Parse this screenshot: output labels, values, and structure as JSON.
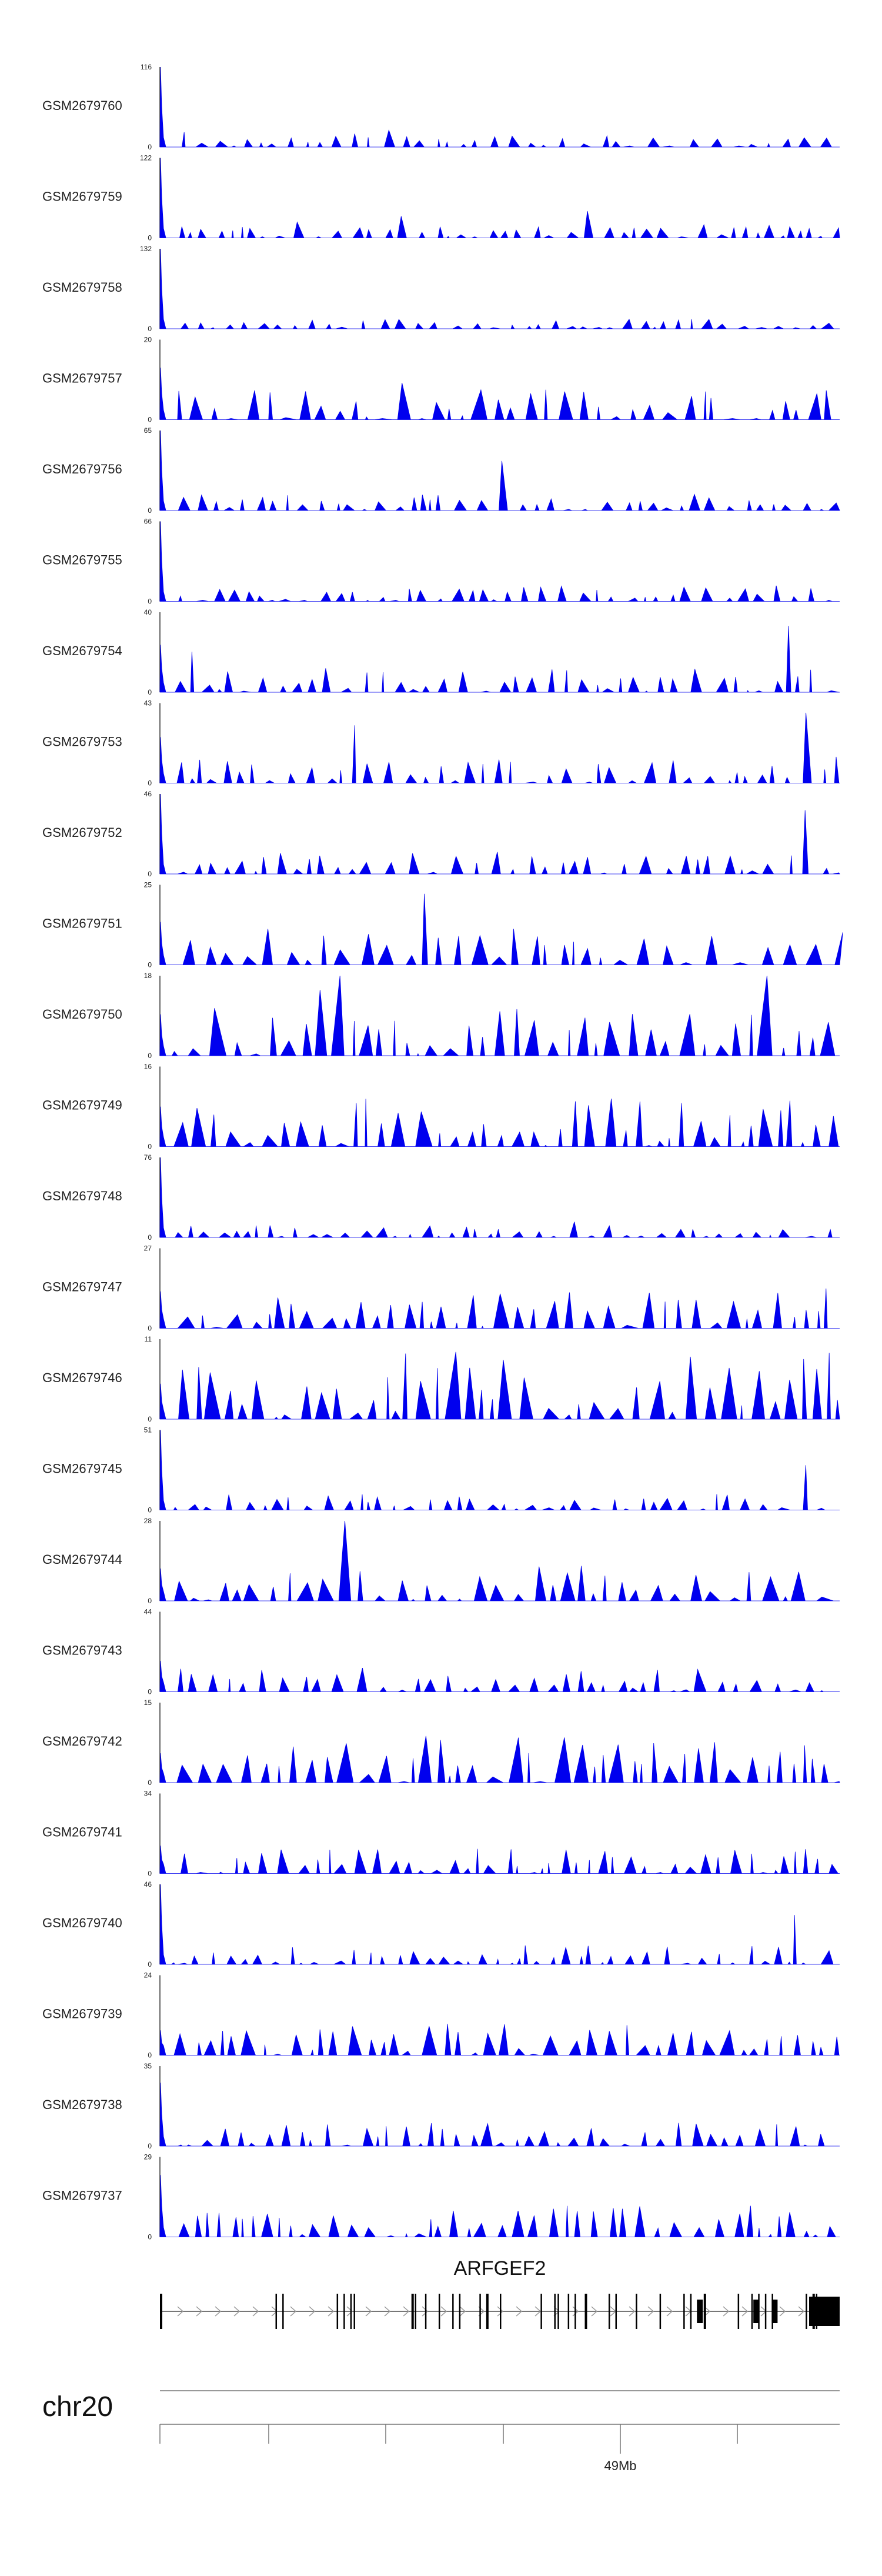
{
  "chart_data": {
    "type": "area",
    "series_color": "#0000EE",
    "x_range_relative": [
      0,
      1
    ],
    "tracks": [
      {
        "name": "GSM2679760",
        "ymax": 116,
        "ymin": 0,
        "seed": 760,
        "density": 0.55,
        "spike_scale": 0.14
      },
      {
        "name": "GSM2679759",
        "ymax": 122,
        "ymin": 0,
        "seed": 759,
        "density": 0.65,
        "spike_scale": 0.14
      },
      {
        "name": "GSM2679758",
        "ymax": 132,
        "ymin": 0,
        "seed": 758,
        "density": 0.55,
        "spike_scale": 0.12
      },
      {
        "name": "GSM2679757",
        "ymax": 20,
        "ymin": 0,
        "seed": 757,
        "density": 0.75,
        "spike_scale": 0.5
      },
      {
        "name": "GSM2679756",
        "ymax": 65,
        "ymin": 0,
        "seed": 756,
        "density": 0.65,
        "spike_scale": 0.22
      },
      {
        "name": "GSM2679755",
        "ymax": 66,
        "ymin": 0,
        "seed": 755,
        "density": 0.6,
        "spike_scale": 0.2
      },
      {
        "name": "GSM2679754",
        "ymax": 40,
        "ymin": 0,
        "seed": 754,
        "density": 0.6,
        "spike_scale": 0.3
      },
      {
        "name": "GSM2679753",
        "ymax": 43,
        "ymin": 0,
        "seed": 753,
        "density": 0.65,
        "spike_scale": 0.3
      },
      {
        "name": "GSM2679752",
        "ymax": 46,
        "ymin": 0,
        "seed": 752,
        "density": 0.55,
        "spike_scale": 0.28
      },
      {
        "name": "GSM2679751",
        "ymax": 25,
        "ymin": 0,
        "seed": 751,
        "density": 0.6,
        "spike_scale": 0.45
      },
      {
        "name": "GSM2679750",
        "ymax": 18,
        "ymin": 0,
        "seed": 750,
        "density": 0.75,
        "spike_scale": 0.6
      },
      {
        "name": "GSM2679749",
        "ymax": 16,
        "ymin": 0,
        "seed": 749,
        "density": 0.75,
        "spike_scale": 0.6
      },
      {
        "name": "GSM2679748",
        "ymax": 76,
        "ymin": 0,
        "seed": 748,
        "density": 0.6,
        "spike_scale": 0.15
      },
      {
        "name": "GSM2679747",
        "ymax": 27,
        "ymin": 0,
        "seed": 747,
        "density": 0.75,
        "spike_scale": 0.45
      },
      {
        "name": "GSM2679746",
        "ymax": 11,
        "ymin": 0,
        "seed": 746,
        "density": 0.8,
        "spike_scale": 0.85
      },
      {
        "name": "GSM2679745",
        "ymax": 51,
        "ymin": 0,
        "seed": 745,
        "density": 0.6,
        "spike_scale": 0.2
      },
      {
        "name": "GSM2679744",
        "ymax": 28,
        "ymin": 0,
        "seed": 744,
        "density": 0.7,
        "spike_scale": 0.45
      },
      {
        "name": "GSM2679743",
        "ymax": 44,
        "ymin": 0,
        "seed": 743,
        "density": 0.6,
        "spike_scale": 0.3
      },
      {
        "name": "GSM2679742",
        "ymax": 15,
        "ymin": 0,
        "seed": 742,
        "density": 0.8,
        "spike_scale": 0.6
      },
      {
        "name": "GSM2679741",
        "ymax": 34,
        "ymin": 0,
        "seed": 741,
        "density": 0.7,
        "spike_scale": 0.32
      },
      {
        "name": "GSM2679740",
        "ymax": 46,
        "ymin": 0,
        "seed": 740,
        "density": 0.6,
        "spike_scale": 0.25
      },
      {
        "name": "GSM2679739",
        "ymax": 24,
        "ymin": 0,
        "seed": 739,
        "density": 0.75,
        "spike_scale": 0.45
      },
      {
        "name": "GSM2679738",
        "ymax": 35,
        "ymin": 0,
        "seed": 738,
        "density": 0.6,
        "spike_scale": 0.3
      },
      {
        "name": "GSM2679737",
        "ymax": 29,
        "ymin": 0,
        "seed": 737,
        "density": 0.7,
        "spike_scale": 0.4
      }
    ],
    "gene": {
      "name": "ARFGEF2",
      "strand": "+",
      "exon_positions": [
        0.0,
        0.17,
        0.18,
        0.26,
        0.27,
        0.28,
        0.285,
        0.37,
        0.375,
        0.39,
        0.41,
        0.43,
        0.44,
        0.47,
        0.48,
        0.5,
        0.56,
        0.58,
        0.585,
        0.6,
        0.61,
        0.625,
        0.66,
        0.67,
        0.7,
        0.735,
        0.77,
        0.78,
        0.8,
        0.85,
        0.87,
        0.88,
        0.89,
        0.9,
        0.95,
        0.96,
        0.965
      ]
    },
    "chromosome": "chr20",
    "genome_ticks": [
      "",
      "",
      "",
      "",
      "49Mb",
      ""
    ]
  }
}
